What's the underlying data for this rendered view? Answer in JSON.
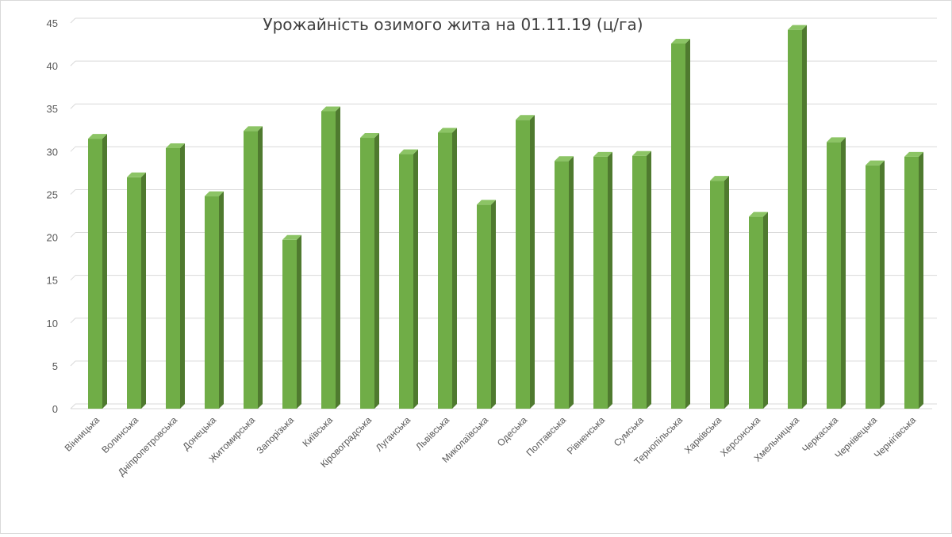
{
  "chart_data": {
    "type": "bar",
    "title": "Урожайність озимого жита на 01.11.19 (ц/га)",
    "xlabel": "",
    "ylabel": "",
    "ylim": [
      0,
      45
    ],
    "yticks": [
      0,
      5,
      10,
      15,
      20,
      25,
      30,
      35,
      40,
      45
    ],
    "grid": true,
    "legend": "none",
    "bar_style": "3d",
    "colors": {
      "bar_front": "#70ad47",
      "bar_side": "#4f7a2f",
      "bar_top": "#8cc465",
      "grid": "#d9d9d9",
      "axis_text": "#595959"
    },
    "categories": [
      "Вінницька",
      "Волинська",
      "Дніпропетровська",
      "Донецька",
      "Житомирська",
      "Запорізька",
      "Київська",
      "Кіровоградська",
      "Луганська",
      "Львівська",
      "Миколаївська",
      "Одеська",
      "Полтавська",
      "Рівненська",
      "Сумська",
      "Тернопільська",
      "Харківська",
      "Херсонська",
      "Хмельницька",
      "Черкаська",
      "Чернівецька",
      "Чернігівська"
    ],
    "values": [
      31.5,
      27.0,
      30.4,
      24.8,
      32.4,
      19.7,
      34.7,
      31.6,
      29.7,
      32.2,
      23.8,
      33.7,
      28.9,
      29.4,
      29.5,
      42.6,
      26.6,
      22.4,
      44.2,
      31.1,
      28.4,
      29.4
    ]
  }
}
